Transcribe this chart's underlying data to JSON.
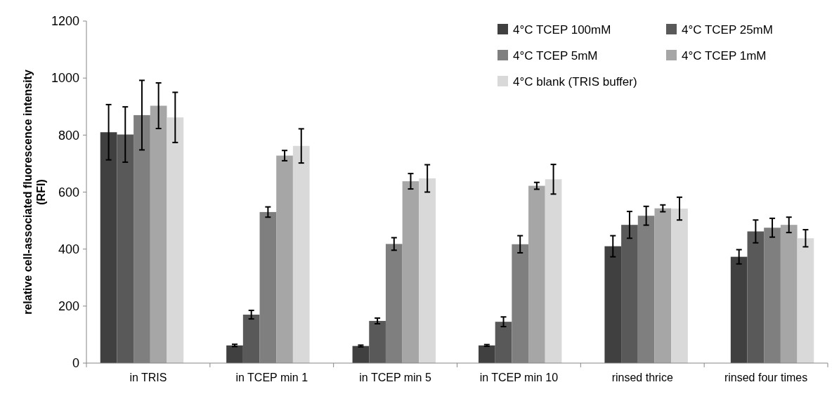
{
  "chart_data": {
    "type": "bar",
    "ylabel": "relative cell-associated fluorescence intensity (RFI)",
    "categories": [
      "in TRIS",
      "in TCEP min 1",
      "in TCEP min 5",
      "in TCEP min 10",
      "rinsed thrice",
      "rinsed four times"
    ],
    "series": [
      {
        "name": "4°C TCEP 100mM",
        "color": "#404040",
        "values": [
          810,
          62,
          60,
          62,
          410,
          373
        ],
        "errors": [
          97,
          4,
          3,
          3,
          37,
          25
        ]
      },
      {
        "name": "4°C TCEP 25mM",
        "color": "#595959",
        "values": [
          802,
          170,
          148,
          145,
          485,
          462
        ],
        "errors": [
          97,
          15,
          10,
          17,
          47,
          40
        ]
      },
      {
        "name": "4°C TCEP 5mM",
        "color": "#7f7f7f",
        "values": [
          870,
          530,
          418,
          417,
          517,
          475
        ],
        "errors": [
          122,
          18,
          22,
          30,
          33,
          33
        ]
      },
      {
        "name": "4°C TCEP 1mM",
        "color": "#a6a6a6",
        "values": [
          903,
          728,
          638,
          622,
          543,
          485
        ],
        "errors": [
          80,
          18,
          27,
          12,
          12,
          27
        ]
      },
      {
        "name": "4°C blank (TRIS buffer)",
        "color": "#d9d9d9",
        "values": [
          862,
          762,
          648,
          645,
          542,
          438
        ],
        "errors": [
          88,
          60,
          48,
          52,
          40,
          30
        ]
      }
    ],
    "ylim": [
      0,
      1200
    ],
    "yticks": [
      0,
      200,
      400,
      600,
      800,
      1000,
      1200
    ],
    "grid": false,
    "legend": "top right"
  }
}
